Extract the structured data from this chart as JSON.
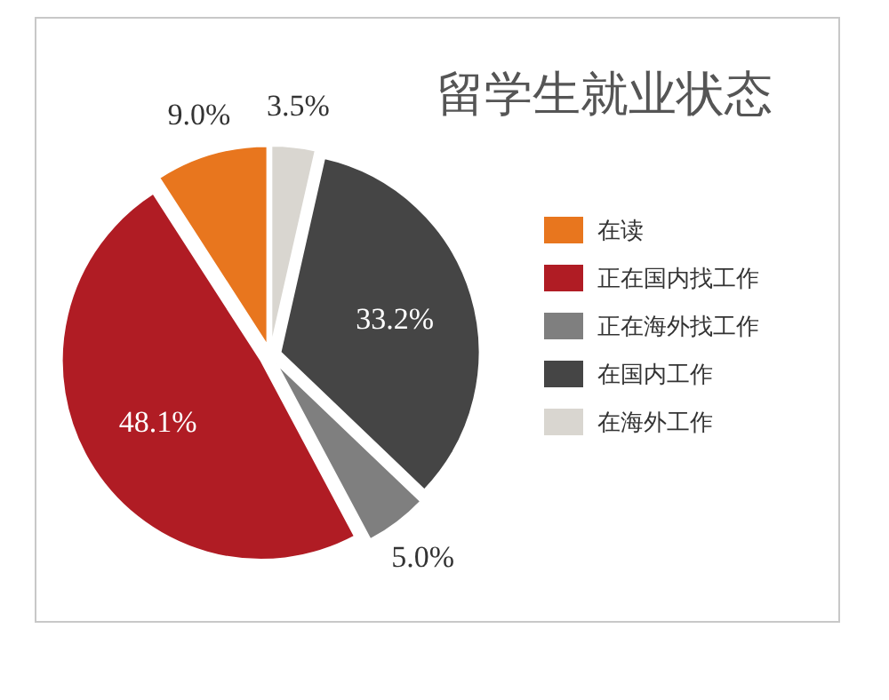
{
  "chart_data": {
    "type": "pie",
    "title": "留学生就业状态",
    "categories": [
      "在读",
      "正在国内找工作",
      "正在海外找工作",
      "在国内工作",
      "在海外工作"
    ],
    "values": [
      9.0,
      48.1,
      5.0,
      33.2,
      3.5
    ],
    "value_labels": [
      "9.0%",
      "48.1%",
      "5.0%",
      "33.2%",
      "3.5%"
    ],
    "colors": [
      "#e8761e",
      "#b01c24",
      "#7f7f7f",
      "#454545",
      "#d9d6d0"
    ],
    "legend": "right"
  }
}
